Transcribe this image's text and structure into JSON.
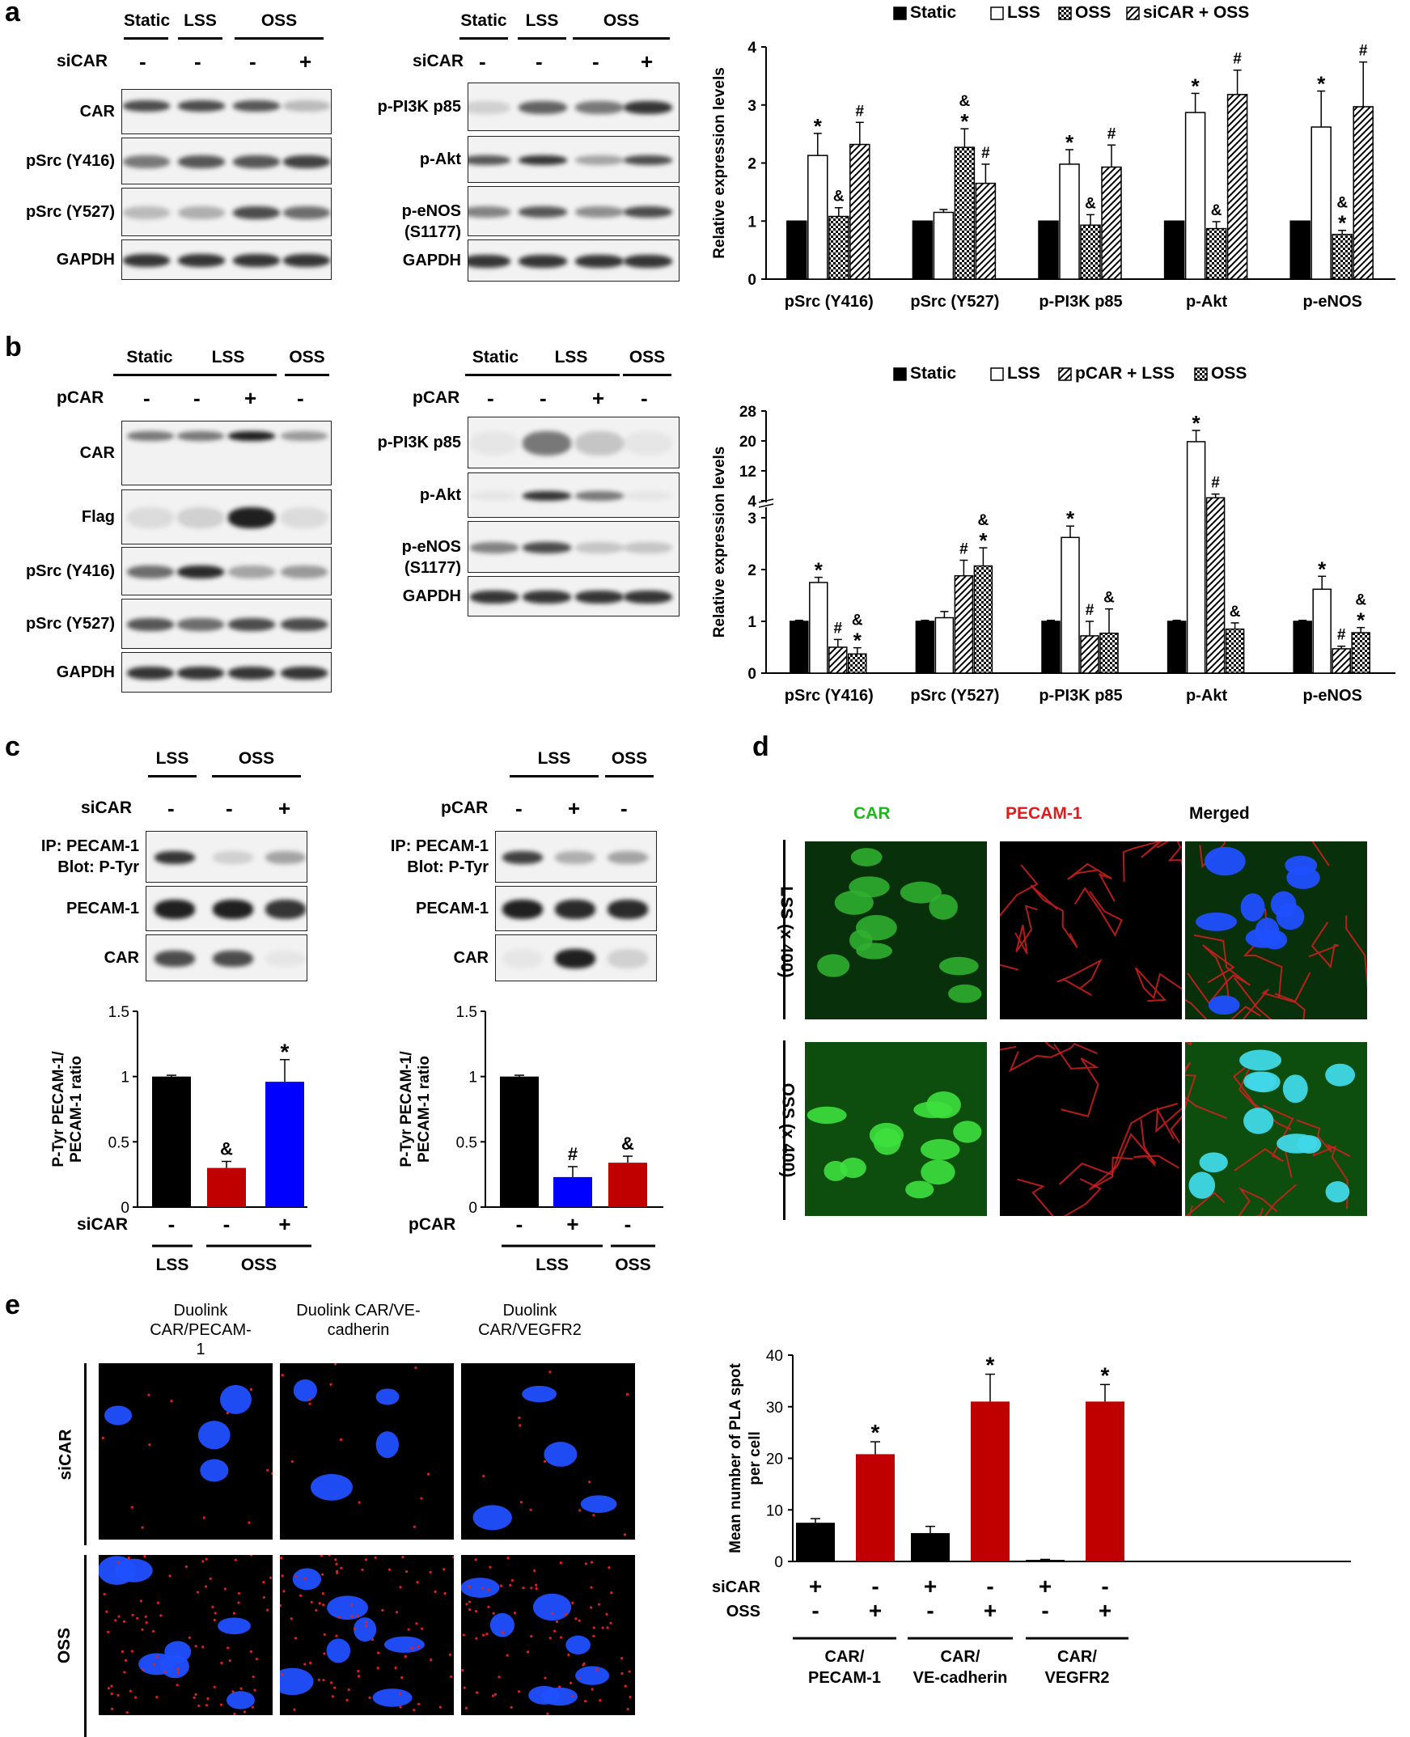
{
  "panels": [
    "a",
    "b",
    "c",
    "d",
    "e"
  ],
  "a": {
    "left_blot": {
      "groups": [
        "Static",
        "LSS",
        "OSS"
      ],
      "row_label": "siCAR",
      "signs": [
        "-",
        "-",
        "-",
        "+"
      ],
      "rows": [
        "CAR",
        "pSrc (Y416)",
        "pSrc (Y527)",
        "GAPDH"
      ]
    },
    "mid_blot": {
      "groups": [
        "Static",
        "LSS",
        "OSS"
      ],
      "row_label": "siCAR",
      "signs": [
        "-",
        "-",
        "-",
        "+"
      ],
      "rows": [
        "p-PI3K p85",
        "p-Akt",
        "p-eNOS (S1177)",
        "GAPDH"
      ]
    }
  },
  "b": {
    "left_blot": {
      "groups": [
        "Static",
        "LSS",
        "OSS"
      ],
      "row_label": "pCAR",
      "signs": [
        "-",
        "-",
        "+",
        "-"
      ],
      "rows": [
        "CAR",
        "Flag",
        "pSrc (Y416)",
        "pSrc (Y527)",
        "GAPDH"
      ]
    },
    "mid_blot": {
      "groups": [
        "Static",
        "LSS",
        "OSS"
      ],
      "row_label": "pCAR",
      "signs": [
        "-",
        "-",
        "+",
        "-"
      ],
      "rows": [
        "p-PI3K p85",
        "p-Akt",
        "p-eNOS (S1177)",
        "GAPDH"
      ]
    }
  },
  "c": {
    "left": {
      "groups": [
        "LSS",
        "OSS"
      ],
      "row_label": "siCAR",
      "signs": [
        "-",
        "-",
        "+"
      ],
      "rows": [
        "IP: PECAM-1 Blot: P-Tyr",
        "PECAM-1",
        "CAR"
      ]
    },
    "right": {
      "groups": [
        "LSS",
        "OSS"
      ],
      "row_label": "pCAR",
      "signs": [
        "-",
        "+",
        "-"
      ],
      "rows": [
        "IP: PECAM-1 Blot: P-Tyr",
        "PECAM-1",
        "CAR"
      ]
    }
  },
  "d": {
    "columns": [
      "CAR",
      "PECAM-1",
      "Merged"
    ],
    "rows": [
      "LSS (x 400)",
      "OSS (x 400)"
    ],
    "colors": {
      "green": "#1cb81c",
      "red": "#e01b1b",
      "blue": "#2a5cff"
    }
  },
  "e": {
    "columns": [
      "Duolink CAR/PECAM-1",
      "Duolink CAR/VE-cadherin",
      "Duolink CAR/VEGFR2"
    ],
    "rows": [
      "siCAR",
      "OSS"
    ]
  },
  "chart_data": [
    {
      "panel": "a",
      "type": "bar",
      "ylabel": "Relative expression levels",
      "ylim": [
        0,
        4
      ],
      "yticks": [
        "0",
        "1",
        "2",
        "3",
        "4"
      ],
      "categories": [
        "pSrc (Y416)",
        "pSrc (Y527)",
        "p-PI3K p85",
        "p-Akt",
        "p-eNOS"
      ],
      "series": [
        {
          "name": "Static",
          "fill": "black",
          "values": [
            1,
            1,
            1,
            1,
            1
          ],
          "err": [
            0,
            0,
            0,
            0,
            0
          ]
        },
        {
          "name": "LSS",
          "fill": "white",
          "values": [
            2.13,
            1.15,
            1.98,
            2.87,
            2.62
          ],
          "err": [
            0.38,
            0.05,
            0.25,
            0.33,
            0.62
          ]
        },
        {
          "name": "OSS",
          "fill": "check",
          "values": [
            1.08,
            2.27,
            0.93,
            0.87,
            0.77
          ],
          "err": [
            0.15,
            0.32,
            0.18,
            0.12,
            0.07
          ]
        },
        {
          "name": "siCAR + OSS",
          "fill": "hatch",
          "values": [
            2.32,
            1.65,
            1.93,
            3.18,
            2.97
          ],
          "err": [
            0.38,
            0.33,
            0.38,
            0.42,
            0.77
          ]
        }
      ],
      "annotations": [
        {
          "bar": [
            0,
            1
          ],
          "text": "*"
        },
        {
          "bar": [
            0,
            2
          ],
          "text": "&"
        },
        {
          "bar": [
            0,
            3
          ],
          "text": "#"
        },
        {
          "bar": [
            1,
            2
          ],
          "text": "&\n*"
        },
        {
          "bar": [
            1,
            3
          ],
          "text": "#"
        },
        {
          "bar": [
            2,
            1
          ],
          "text": "*"
        },
        {
          "bar": [
            2,
            2
          ],
          "text": "&"
        },
        {
          "bar": [
            2,
            3
          ],
          "text": "#"
        },
        {
          "bar": [
            3,
            1
          ],
          "text": "*"
        },
        {
          "bar": [
            3,
            2
          ],
          "text": "&"
        },
        {
          "bar": [
            3,
            3
          ],
          "text": "#"
        },
        {
          "bar": [
            4,
            1
          ],
          "text": "*"
        },
        {
          "bar": [
            4,
            2
          ],
          "text": "&\n*"
        },
        {
          "bar": [
            4,
            3
          ],
          "text": "#"
        }
      ]
    },
    {
      "panel": "b",
      "type": "bar",
      "ylabel": "Relative expression levels",
      "ylim": [
        0,
        28
      ],
      "axis_break": {
        "lower": [
          0,
          3
        ],
        "upper": [
          4,
          28
        ]
      },
      "yticks": [
        "0",
        "1",
        "2",
        "3",
        "4",
        "12",
        "20",
        "28"
      ],
      "categories": [
        "pSrc (Y416)",
        "pSrc (Y527)",
        "p-PI3K p85",
        "p-Akt",
        "p-eNOS"
      ],
      "series": [
        {
          "name": "Static",
          "fill": "black",
          "values": [
            1,
            1,
            1,
            1,
            1
          ],
          "err": [
            0.02,
            0.02,
            0.02,
            0.02,
            0.02
          ]
        },
        {
          "name": "LSS",
          "fill": "white",
          "values": [
            1.75,
            1.07,
            2.62,
            19.8,
            1.62
          ],
          "err": [
            0.1,
            0.12,
            0.22,
            3.0,
            0.25
          ]
        },
        {
          "name": "pCAR + LSS",
          "fill": "hatch",
          "values": [
            0.5,
            1.88,
            0.72,
            4.8,
            0.47
          ],
          "err": [
            0.15,
            0.3,
            0.28,
            1.0,
            0.05
          ]
        },
        {
          "name": "OSS",
          "fill": "check",
          "values": [
            0.37,
            2.07,
            0.77,
            0.85,
            0.78
          ],
          "err": [
            0.12,
            0.35,
            0.47,
            0.12,
            0.1
          ]
        }
      ],
      "annotations": [
        {
          "bar": [
            0,
            1
          ],
          "text": "*"
        },
        {
          "bar": [
            0,
            2
          ],
          "text": "#"
        },
        {
          "bar": [
            0,
            3
          ],
          "text": "&\n*"
        },
        {
          "bar": [
            1,
            2
          ],
          "text": "#"
        },
        {
          "bar": [
            1,
            3
          ],
          "text": "&\n*"
        },
        {
          "bar": [
            2,
            1
          ],
          "text": "*"
        },
        {
          "bar": [
            2,
            2
          ],
          "text": "#"
        },
        {
          "bar": [
            2,
            3
          ],
          "text": "&"
        },
        {
          "bar": [
            3,
            1
          ],
          "text": "*"
        },
        {
          "bar": [
            3,
            2
          ],
          "text": "#"
        },
        {
          "bar": [
            3,
            3
          ],
          "text": "&"
        },
        {
          "bar": [
            4,
            1
          ],
          "text": "*"
        },
        {
          "bar": [
            4,
            2
          ],
          "text": "#"
        },
        {
          "bar": [
            4,
            3
          ],
          "text": "&\n*"
        }
      ]
    },
    {
      "panel": "c-left",
      "type": "bar",
      "ylabel": "P-Tyr PECAM-1/ PECAM-1 ratio",
      "ylim": [
        0,
        1.5
      ],
      "yticks": [
        "0",
        "0.5",
        "1",
        "1.5"
      ],
      "row_label": "siCAR",
      "signs": [
        "-",
        "-",
        "+"
      ],
      "groups": [
        "LSS",
        "OSS"
      ],
      "values": [
        1.0,
        0.3,
        0.96
      ],
      "err": [
        0.01,
        0.05,
        0.17
      ],
      "colors": [
        "#000000",
        "#c00000",
        "#0000ff"
      ],
      "labels": [
        "",
        "&",
        "*"
      ]
    },
    {
      "panel": "c-right",
      "type": "bar",
      "ylabel": "P-Tyr PECAM-1/ PECAM-1 ratio",
      "ylim": [
        0,
        1.5
      ],
      "yticks": [
        "0",
        "0.5",
        "1",
        "1.5"
      ],
      "row_label": "pCAR",
      "signs": [
        "-",
        "+",
        "-"
      ],
      "groups": [
        "LSS",
        "OSS"
      ],
      "values": [
        1.0,
        0.23,
        0.34
      ],
      "err": [
        0.01,
        0.08,
        0.05
      ],
      "colors": [
        "#000000",
        "#0000ff",
        "#c00000"
      ],
      "labels": [
        "",
        "#",
        "&"
      ]
    },
    {
      "panel": "e",
      "type": "bar",
      "ylabel": "Mean number of PLA spot per cell",
      "ylim": [
        0,
        40
      ],
      "yticks": [
        "0",
        "10",
        "20",
        "30",
        "40"
      ],
      "rows": [
        {
          "label": "siCAR",
          "signs": [
            "+",
            "-",
            "+",
            "-",
            "+",
            "-"
          ]
        },
        {
          "label": "OSS",
          "signs": [
            "-",
            "+",
            "-",
            "+",
            "-",
            "+"
          ]
        }
      ],
      "groups": [
        "CAR/ PECAM-1",
        "CAR/ VE-cadherin",
        "CAR/ VEGFR2"
      ],
      "values": [
        7.5,
        20.8,
        5.5,
        31.0,
        0.3,
        31.0
      ],
      "err": [
        0.8,
        2.4,
        1.3,
        5.3,
        0.1,
        3.3
      ],
      "colors": [
        "#000000",
        "#c00000",
        "#000000",
        "#c00000",
        "#000000",
        "#c00000"
      ],
      "labels": [
        "",
        "*",
        "",
        "*",
        "",
        "*"
      ]
    }
  ]
}
